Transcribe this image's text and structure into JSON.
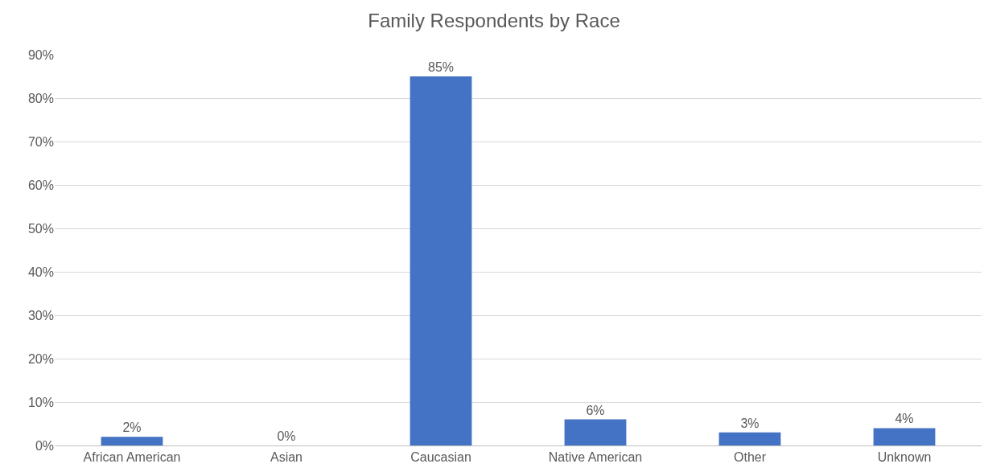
{
  "chart_data": {
    "type": "bar",
    "title": "Family Respondents by Race",
    "categories": [
      "African American",
      "Asian",
      "Caucasian",
      "Native American",
      "Other",
      "Unknown"
    ],
    "values": [
      2,
      0,
      85,
      6,
      3,
      4
    ],
    "value_labels": [
      "2%",
      "0%",
      "85%",
      "6%",
      "3%",
      "4%"
    ],
    "color": "#4472c4",
    "ylim": [
      0,
      90
    ],
    "yticks": [
      {
        "value": 0,
        "label": "0%"
      },
      {
        "value": 10,
        "label": "10%"
      },
      {
        "value": 20,
        "label": "20%"
      },
      {
        "value": 30,
        "label": "30%"
      },
      {
        "value": 40,
        "label": "40%"
      },
      {
        "value": 50,
        "label": "50%"
      },
      {
        "value": 60,
        "label": "60%"
      },
      {
        "value": 70,
        "label": "70%"
      },
      {
        "value": 80,
        "label": "80%"
      },
      {
        "value": 90,
        "label": "90%"
      }
    ],
    "grid": "y",
    "legend": false
  }
}
